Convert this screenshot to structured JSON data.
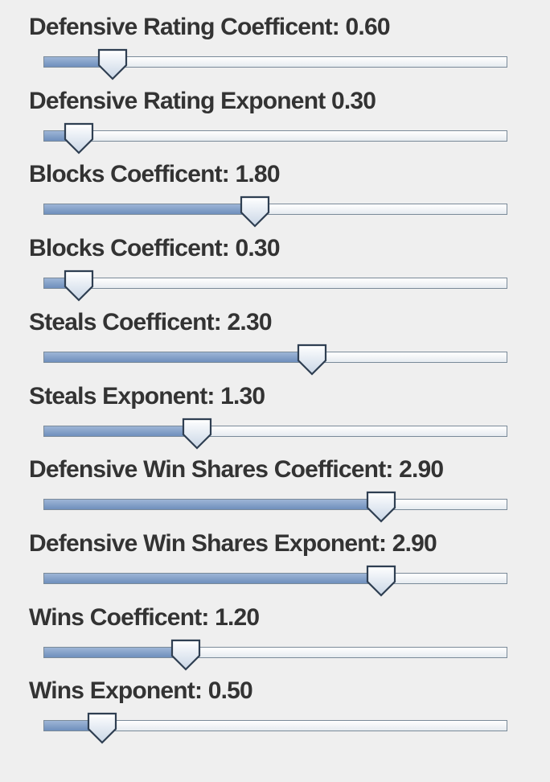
{
  "sliders": [
    {
      "label": "Defensive Rating Coefficent: 0.60",
      "fraction": 0.149
    },
    {
      "label": "Defensive Rating Exponent 0.30",
      "fraction": 0.077
    },
    {
      "label": "Blocks Coefficent: 1.80",
      "fraction": 0.456
    },
    {
      "label": "Blocks Coefficent: 0.30",
      "fraction": 0.077
    },
    {
      "label": "Steals Coefficent: 2.30",
      "fraction": 0.579
    },
    {
      "label": "Steals Exponent: 1.30",
      "fraction": 0.331
    },
    {
      "label": "Defensive Win Shares Coefficent: 2.90",
      "fraction": 0.728
    },
    {
      "label": "Defensive Win Shares Exponent: 2.90",
      "fraction": 0.728
    },
    {
      "label": "Wins Coefficent: 1.20",
      "fraction": 0.306
    },
    {
      "label": "Wins Exponent: 0.50",
      "fraction": 0.126
    }
  ],
  "colors": {
    "background": "#efefef",
    "label": "#333333",
    "track_fill": "#7f9ccb",
    "track_border": "#7a8a99"
  }
}
